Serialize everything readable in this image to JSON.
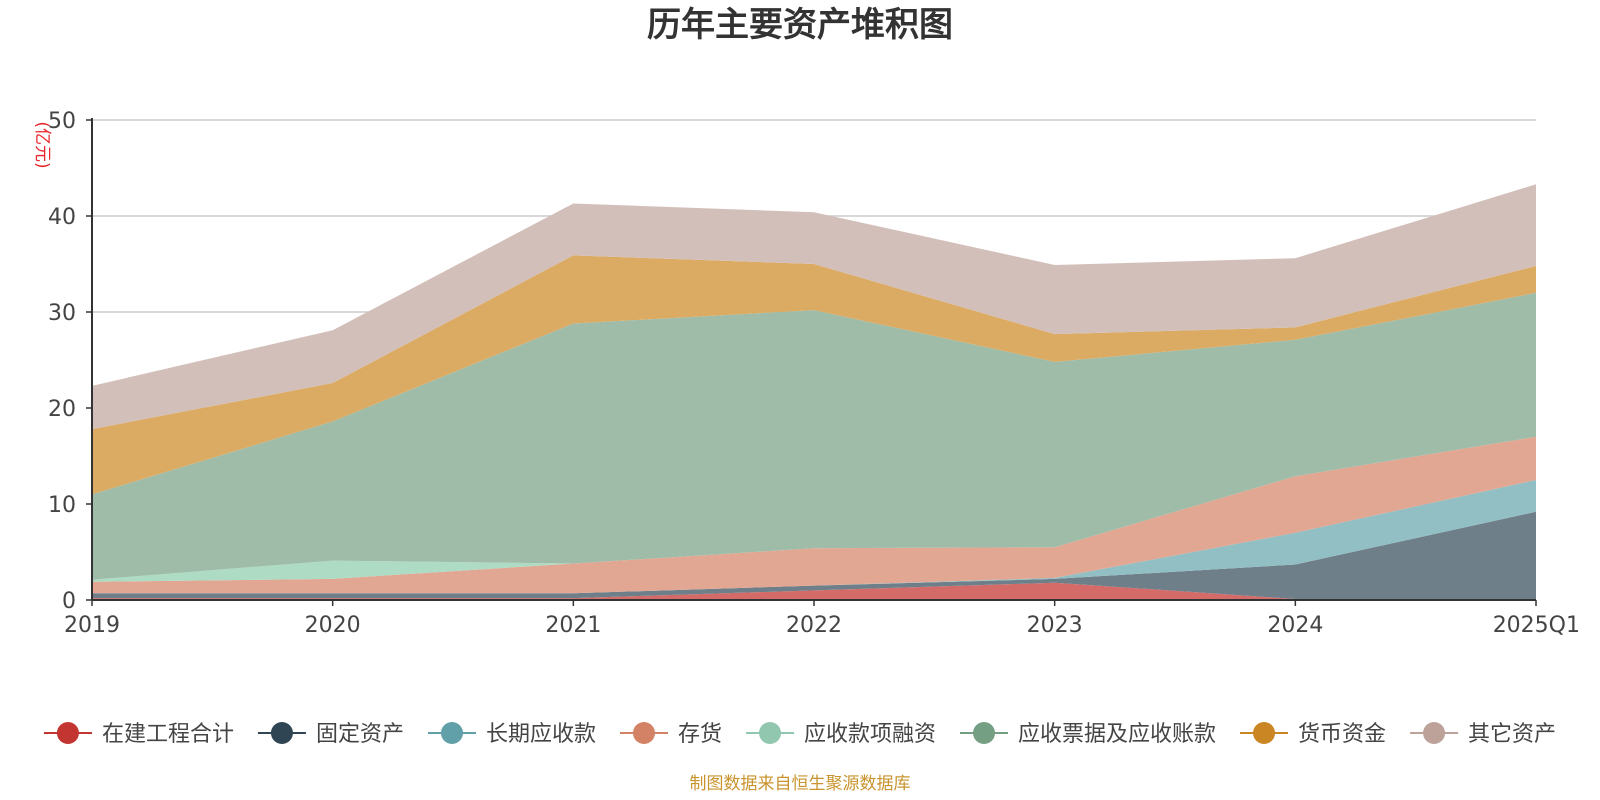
{
  "chart_data": {
    "type": "area",
    "stacked": true,
    "title": "历年主要资产堆积图",
    "ylabel": "(亿元)",
    "xlabel": "",
    "categories": [
      "2019",
      "2020",
      "2021",
      "2022",
      "2023",
      "2024",
      "2025Q1"
    ],
    "ylim": [
      0,
      50
    ],
    "yticks": [
      0,
      10,
      20,
      30,
      40,
      50
    ],
    "grid": true,
    "legend_position": "bottom",
    "series": [
      {
        "name": "在建工程合计",
        "color": "#c23531",
        "fill": "#d46b68",
        "values": [
          0.2,
          0.2,
          0.2,
          1.0,
          1.8,
          0.1,
          0.1
        ]
      },
      {
        "name": "固定资产",
        "color": "#2f4554",
        "fill": "#6e7f8a",
        "values": [
          0.5,
          0.5,
          0.5,
          0.5,
          0.4,
          3.6,
          9.1
        ]
      },
      {
        "name": "长期应收款",
        "color": "#61a0a8",
        "fill": "#92bfc4",
        "values": [
          0.0,
          0.0,
          0.0,
          0.0,
          0.1,
          3.3,
          3.3
        ]
      },
      {
        "name": "存货",
        "color": "#d48265",
        "fill": "#e2a792",
        "values": [
          1.2,
          1.5,
          3.1,
          3.9,
          3.2,
          5.9,
          4.5
        ]
      },
      {
        "name": "应收款项融资",
        "color": "#91c7ae",
        "fill": "#aedbc4",
        "values": [
          0.2,
          1.9,
          0.0,
          0.0,
          0.0,
          0.0,
          0.0
        ]
      },
      {
        "name": "应收票据及应收账款",
        "color": "#749f83",
        "fill": "#9fbca9",
        "values": [
          8.9,
          14.5,
          25.0,
          24.8,
          19.3,
          14.2,
          15.0
        ]
      },
      {
        "name": "货币资金",
        "color": "#ca8622",
        "fill": "#dcab63",
        "values": [
          6.8,
          4.0,
          7.1,
          4.8,
          2.9,
          1.3,
          2.8
        ]
      },
      {
        "name": "其它资产",
        "color": "#bda29a",
        "fill": "#d3bfb9",
        "values": [
          4.5,
          5.5,
          5.4,
          5.4,
          7.2,
          7.2,
          8.5
        ]
      }
    ]
  },
  "footer": {
    "source": "制图数据来自恒生聚源数据库"
  },
  "colors": {
    "title": "#333333",
    "unit_label": "#e8262b",
    "source": "#c9942e",
    "grid": "#cccccc",
    "axis": "#333333"
  }
}
